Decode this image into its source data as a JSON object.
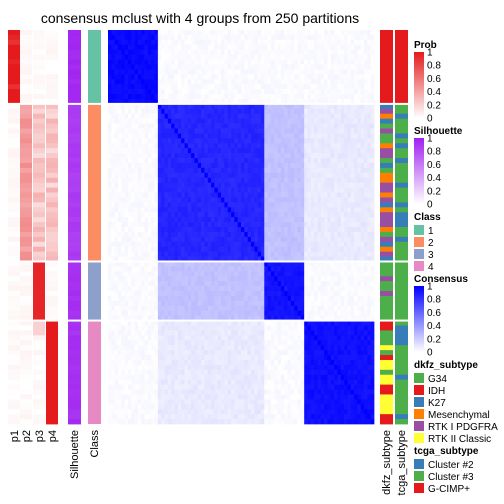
{
  "chart_data": {
    "type": "heatmap",
    "title": "consensus mclust with 4 groups from 250 partitions",
    "n_samples": 80,
    "column_labels": [
      "p1",
      "p2",
      "p3",
      "p4",
      "Silhouette",
      "Class"
    ],
    "annotation_labels": [
      "dkfz_subtype",
      "tcga_subtype"
    ],
    "class_order": [
      1,
      2,
      3,
      4
    ],
    "class_counts": [
      15,
      32,
      12,
      21
    ],
    "class_colors": [
      "#66C2A5",
      "#FC8D62",
      "#8DA0CB",
      "#E78AC3"
    ],
    "membership_prob": {
      "p1": [
        1,
        0.95,
        0.9,
        1,
        1,
        1,
        0.95,
        1,
        1,
        1,
        1,
        0.9,
        1,
        1,
        1
      ],
      "p2_in_class2": 0.45,
      "p3_in_class3": 0.95,
      "p4_in_class4": 1.0
    },
    "silhouette_mean_by_class": [
      0.98,
      0.9,
      0.95,
      0.95
    ],
    "consensus_within_class": [
      0.96,
      0.85,
      0.92,
      0.94
    ],
    "consensus_between_class_2_3": 0.22,
    "legends": [
      {
        "title": "Prob",
        "ticks": [
          "1",
          "0.8",
          "0.6",
          "0.4",
          "0.2",
          "0"
        ],
        "low_color": "#ffffff",
        "high_color": "#e41a1c"
      },
      {
        "title": "Silhouette",
        "ticks": [
          "1",
          "0.8",
          "0.6",
          "0.4",
          "0.2",
          "0"
        ],
        "low_color": "#ffffff",
        "high_color": "#a020f0"
      },
      {
        "title": "Class",
        "items": [
          {
            "label": "1",
            "color": "#66C2A5"
          },
          {
            "label": "2",
            "color": "#FC8D62"
          },
          {
            "label": "3",
            "color": "#8DA0CB"
          },
          {
            "label": "4",
            "color": "#E78AC3"
          }
        ]
      },
      {
        "title": "Consensus",
        "ticks": [
          "1",
          "0.8",
          "0.6",
          "0.4",
          "0.2",
          "0"
        ],
        "low_color": "#ffffff",
        "high_color": "#0000ff"
      },
      {
        "title": "dkfz_subtype",
        "items": [
          {
            "label": "G34",
            "color": "#4DAF4A"
          },
          {
            "label": "IDH",
            "color": "#E41A1C"
          },
          {
            "label": "K27",
            "color": "#377EB8"
          },
          {
            "label": "Mesenchymal",
            "color": "#FF7F00"
          },
          {
            "label": "RTK I PDGFRA",
            "color": "#984EA3"
          },
          {
            "label": "RTK II Classic",
            "color": "#FFFF33"
          }
        ]
      },
      {
        "title": "tcga_subtype",
        "items": [
          {
            "label": "Cluster #2",
            "color": "#377EB8"
          },
          {
            "label": "Cluster #3",
            "color": "#4DAF4A"
          },
          {
            "label": "G-CIMP+",
            "color": "#E41A1C"
          }
        ]
      }
    ]
  }
}
